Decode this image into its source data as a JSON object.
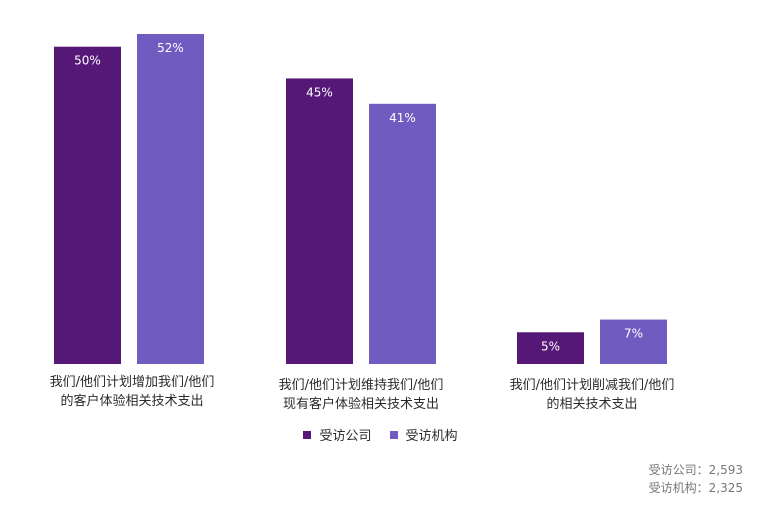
{
  "chart_data": {
    "type": "bar",
    "categories": [
      "我们/他们计划增加我们/他们的客户体验相关技术支出",
      "我们/他们计划维持我们/他们现有客户体验相关技术支出",
      "我们/他们计划削减我们/他们的相关技术支出"
    ],
    "category_lines": [
      [
        "我们/他们计划增加我们/他们",
        "的客户体验相关技术支出"
      ],
      [
        "我们/他们计划维持我们/他们",
        "现有客户体验相关技术支出"
      ],
      [
        "我们/他们计划削减我们/他们",
        "的相关技术支出"
      ]
    ],
    "series": [
      {
        "name": "受访公司",
        "values": [
          50,
          45,
          5
        ],
        "labels": [
          "50%",
          "45%",
          "5%"
        ],
        "color": "#561876"
      },
      {
        "name": "受访机构",
        "values": [
          52,
          41,
          7
        ],
        "labels": [
          "52%",
          "41%",
          "7%"
        ],
        "color": "#705cc0"
      }
    ],
    "unit": "%",
    "ylim": [
      0,
      52
    ],
    "grid": false,
    "legend_position": "bottom-center"
  },
  "legend": {
    "items": [
      {
        "label": "受访公司",
        "color": "#561876"
      },
      {
        "label": "受访机构",
        "color": "#705cc0"
      }
    ]
  },
  "footnote": {
    "line1": "受访公司：2,593",
    "line2": "受访机构：2,325"
  }
}
